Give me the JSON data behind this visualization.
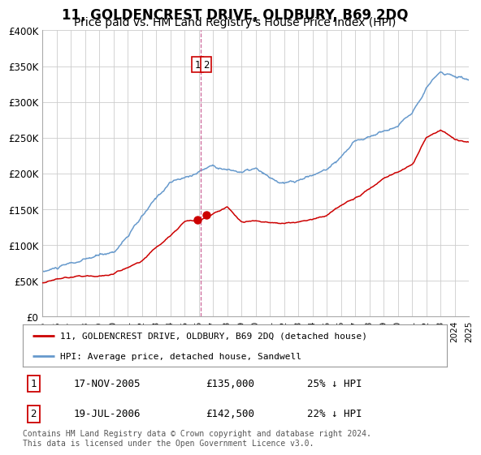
{
  "title": "11, GOLDENCREST DRIVE, OLDBURY, B69 2DQ",
  "subtitle": "Price paid vs. HM Land Registry's House Price Index (HPI)",
  "ylim": [
    0,
    400000
  ],
  "xlim": [
    1995,
    2025
  ],
  "yticks": [
    0,
    50000,
    100000,
    150000,
    200000,
    250000,
    300000,
    350000,
    400000
  ],
  "ytick_labels": [
    "£0",
    "£50K",
    "£100K",
    "£150K",
    "£200K",
    "£250K",
    "£300K",
    "£350K",
    "£400K"
  ],
  "xticks": [
    1995,
    1996,
    1997,
    1998,
    1999,
    2000,
    2001,
    2002,
    2003,
    2004,
    2005,
    2006,
    2007,
    2008,
    2009,
    2010,
    2011,
    2012,
    2013,
    2014,
    2015,
    2016,
    2017,
    2018,
    2019,
    2020,
    2021,
    2022,
    2023,
    2024,
    2025
  ],
  "legend_label_red": "11, GOLDENCREST DRIVE, OLDBURY, B69 2DQ (detached house)",
  "legend_label_blue": "HPI: Average price, detached house, Sandwell",
  "red_color": "#cc0000",
  "blue_color": "#6699cc",
  "sale1_date": 2005.88,
  "sale1_price": 135000,
  "sale2_date": 2006.54,
  "sale2_price": 142500,
  "vline_x": 2006.15,
  "vline_color": "#cc6699",
  "footer_text": "Contains HM Land Registry data © Crown copyright and database right 2024.\nThis data is licensed under the Open Government Licence v3.0.",
  "table_rows": [
    {
      "num": "1",
      "date": "17-NOV-2005",
      "price": "£135,000",
      "pct": "25% ↓ HPI"
    },
    {
      "num": "2",
      "date": "19-JUL-2006",
      "price": "£142,500",
      "pct": "22% ↓ HPI"
    }
  ],
  "background_color": "#ffffff",
  "grid_color": "#cccccc",
  "title_fontsize": 12,
  "subtitle_fontsize": 10
}
